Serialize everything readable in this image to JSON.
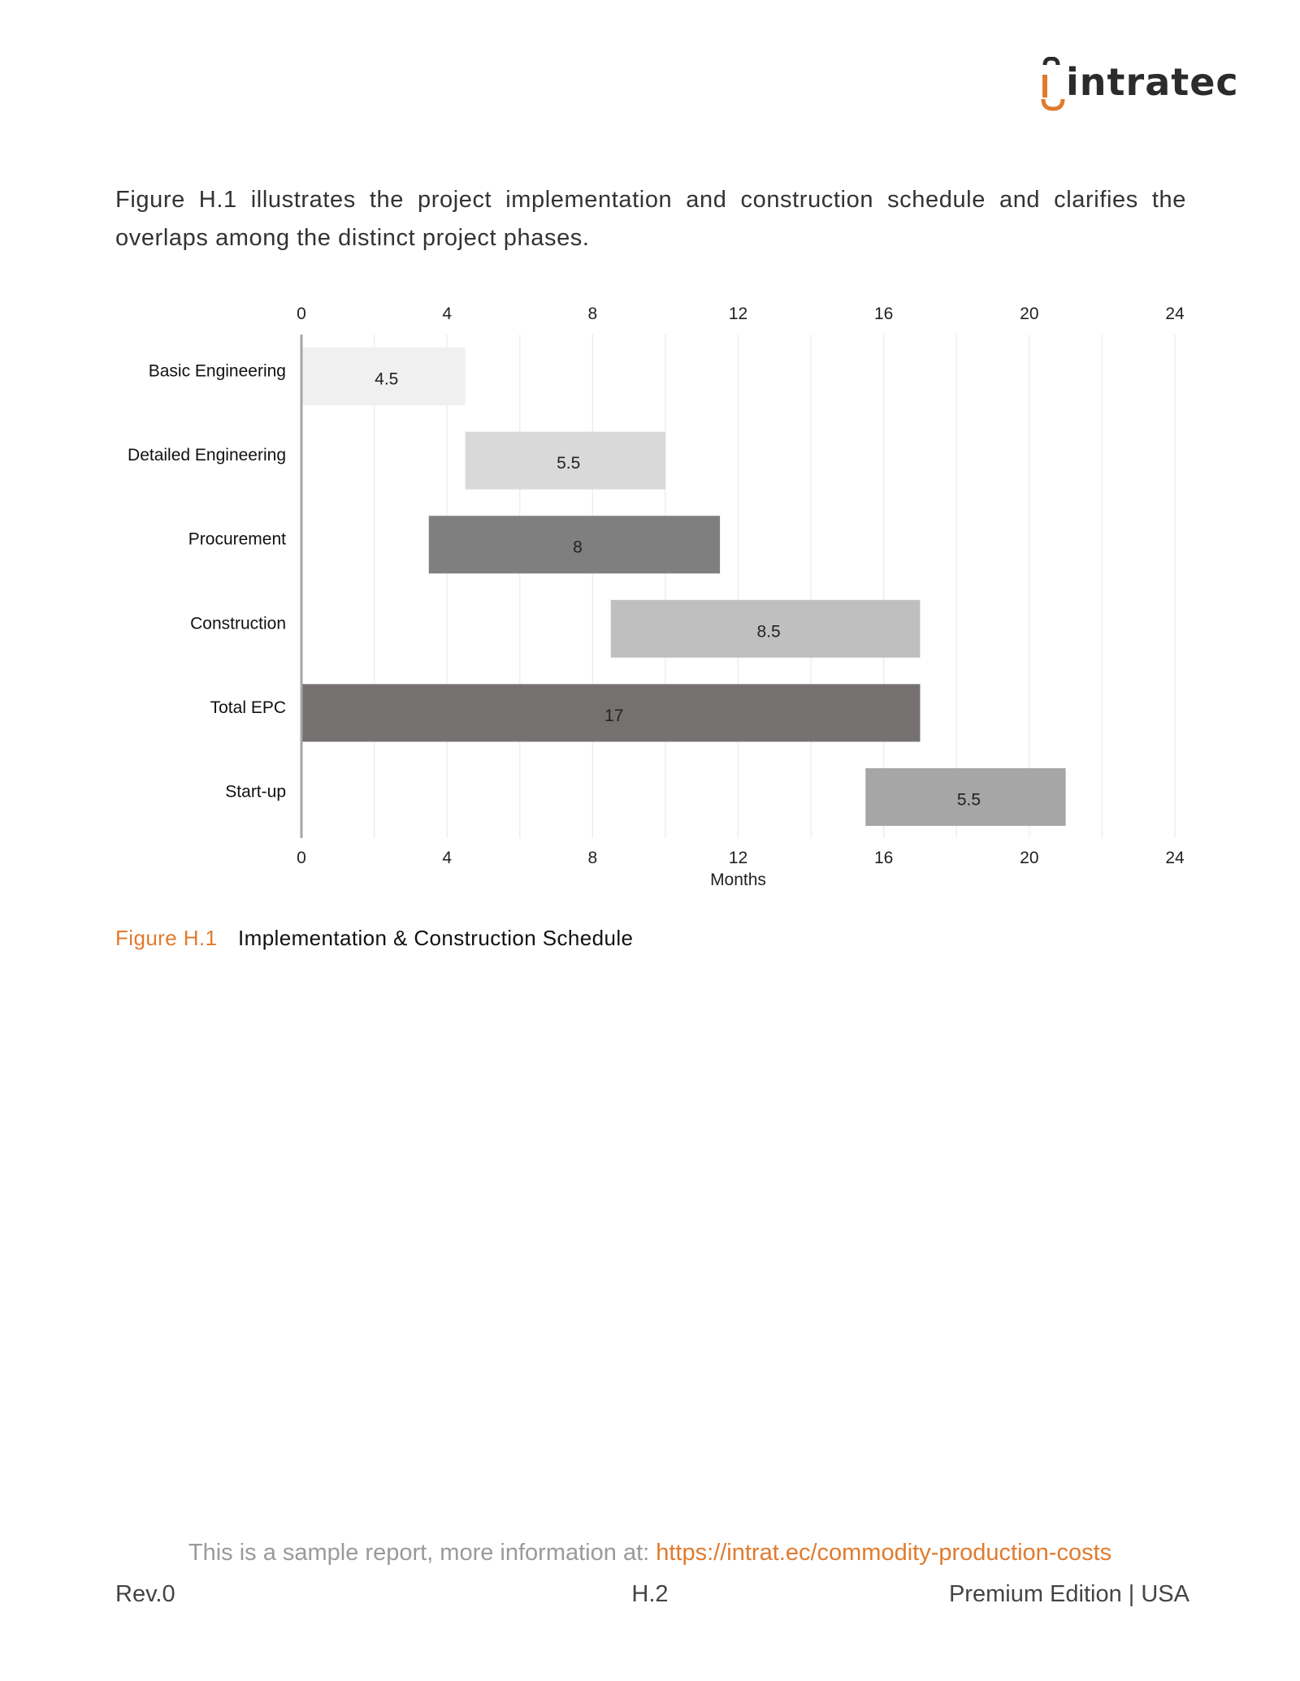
{
  "brand": {
    "name": "intratec",
    "accent": "#e07b2e"
  },
  "intro_text": "Figure H.1 illustrates the project implementation and construction schedule and clarifies the overlaps among the distinct project phases.",
  "chart_data": {
    "type": "bar",
    "subtype": "gantt",
    "categories": [
      "Basic Engineering",
      "Detailed Engineering",
      "Procurement",
      "Construction",
      "Total EPC",
      "Start-up"
    ],
    "starts": [
      0,
      4.5,
      3.5,
      8.5,
      0,
      15.5
    ],
    "values": [
      4.5,
      5.5,
      8,
      8.5,
      17,
      5.5
    ],
    "labels": [
      "4.5",
      "5.5",
      "8",
      "8.5",
      "17",
      "5.5"
    ],
    "colors": [
      "#f0f0f0",
      "#d9d9d9",
      "#7f7f7f",
      "#bfbfbf",
      "#757170",
      "#a6a6a6"
    ],
    "xticks": [
      "0",
      "4",
      "8",
      "12",
      "16",
      "20",
      "24"
    ],
    "xlim": [
      0,
      24
    ],
    "xlabel": "Months",
    "grid": true
  },
  "caption": {
    "number": "Figure H.1",
    "title": "Implementation & Construction Schedule"
  },
  "footer": {
    "note": "This is a sample report, more information at: ",
    "link": "https://intrat.ec/commodity-production-costs",
    "left": "Rev.0",
    "center": "H.2",
    "right": "Premium Edition | USA"
  }
}
